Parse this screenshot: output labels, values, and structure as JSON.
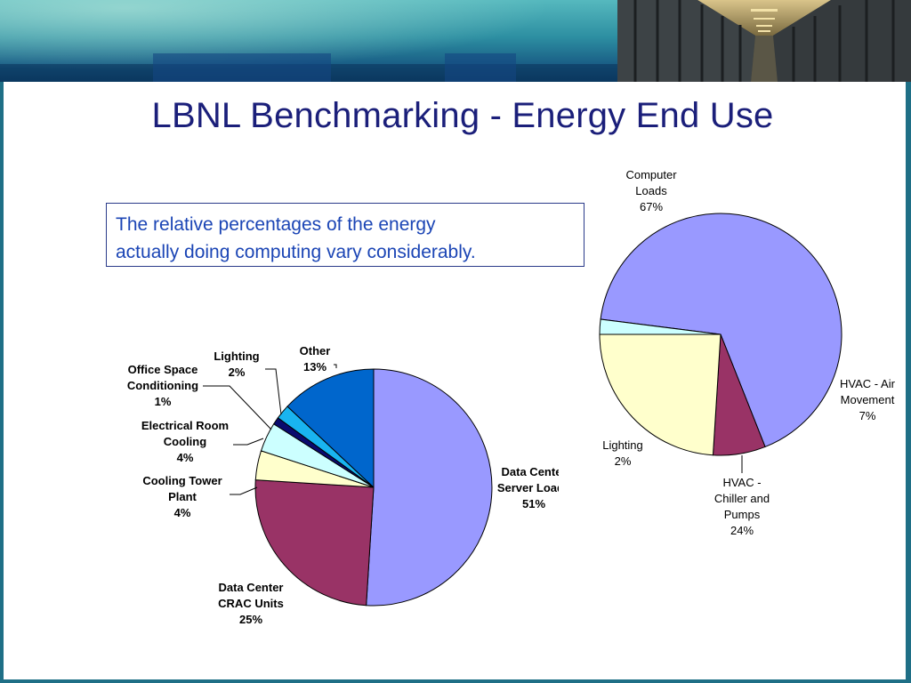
{
  "slide": {
    "title": "LBNL Benchmarking - Energy End Use",
    "note_line1": "The relative percentages of the energy",
    "note_line2": "actually doing computing vary considerably."
  },
  "colors": {
    "title": "#1b1f7a",
    "note_text": "#1b45b5",
    "banner": "#2d8fa2"
  },
  "chart_data": [
    {
      "type": "pie",
      "slices": [
        {
          "name": "Data Center Server Loads",
          "value": 51,
          "color": "#9999ff",
          "label_lines": [
            "Data Center",
            "Server Loads",
            "51%"
          ]
        },
        {
          "name": "Data Center CRAC Units",
          "value": 25,
          "color": "#993366",
          "label_lines": [
            "Data Center",
            "CRAC Units",
            "25%"
          ]
        },
        {
          "name": "Cooling Tower Plant",
          "value": 4,
          "color": "#ffffcc",
          "label_lines": [
            "Cooling Tower",
            "Plant",
            "4%"
          ]
        },
        {
          "name": "Electrical Room Cooling",
          "value": 4,
          "color": "#ccffff",
          "label_lines": [
            "Electrical Room",
            "Cooling",
            "4%"
          ]
        },
        {
          "name": "Office Space Conditioning",
          "value": 1,
          "color": "#0a0a6e",
          "label_lines": [
            "Office Space",
            "Conditioning",
            "1%"
          ]
        },
        {
          "name": "Lighting",
          "value": 2,
          "color": "#19b4f0",
          "label_lines": [
            "Lighting",
            "2%"
          ]
        },
        {
          "name": "Other",
          "value": 13,
          "color": "#0066cc",
          "label_lines": [
            "Other",
            "13%"
          ]
        }
      ]
    },
    {
      "type": "pie",
      "slices": [
        {
          "name": "Computer Loads",
          "value": 67,
          "color": "#9999ff",
          "label_lines": [
            "Computer",
            "Loads",
            "67%"
          ]
        },
        {
          "name": "HVAC - Air Movement",
          "value": 7,
          "color": "#993366",
          "label_lines": [
            "HVAC - Air",
            "Movement",
            "7%"
          ]
        },
        {
          "name": "HVAC - Chiller and Pumps",
          "value": 24,
          "color": "#ffffcc",
          "label_lines": [
            "HVAC -",
            "Chiller and",
            "Pumps",
            "24%"
          ]
        },
        {
          "name": "Lighting",
          "value": 2,
          "color": "#ccffff",
          "label_lines": [
            "Lighting",
            "2%"
          ]
        }
      ]
    }
  ]
}
